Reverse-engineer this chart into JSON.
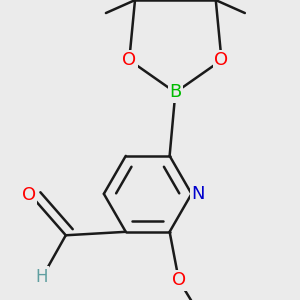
{
  "bg_color": "#ebebeb",
  "bond_color": "#1a1a1a",
  "bond_width": 1.8,
  "atom_colors": {
    "O": "#ff0000",
    "N": "#0000cc",
    "B": "#00bb00",
    "H": "#5f9ea0",
    "default": "#1a1a1a"
  },
  "figsize": [
    3.0,
    3.0
  ],
  "dpi": 100
}
